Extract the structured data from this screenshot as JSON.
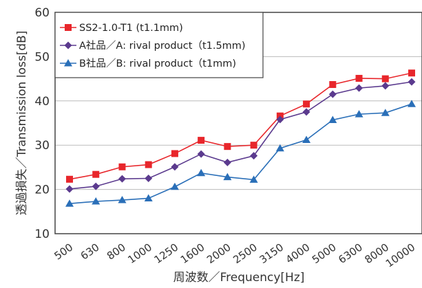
{
  "chart_data": {
    "type": "line",
    "title": "",
    "xlabel": "周波数／Frequency[Hz]",
    "ylabel": "透過損失／Transmission loss[dB]",
    "categories": [
      "500",
      "630",
      "800",
      "1000",
      "1250",
      "1600",
      "2000",
      "2500",
      "3150",
      "4000",
      "5000",
      "6300",
      "8000",
      "10000"
    ],
    "ylim": [
      10,
      60
    ],
    "yticks": [
      "10",
      "20",
      "30",
      "40",
      "50",
      "60"
    ],
    "grid": true,
    "legend_position": "top-left",
    "series": [
      {
        "name": "SS2-1.0-T1 (t1.1mm)",
        "color": "#e8262b",
        "marker": "square",
        "values": [
          22.3,
          23.4,
          25.1,
          25.6,
          28.1,
          31.1,
          29.7,
          30.0,
          36.6,
          39.3,
          43.7,
          45.1,
          45.0,
          46.3
        ]
      },
      {
        "name": "A社品／A: rival product（t1.5mm)",
        "color": "#5b3a8e",
        "marker": "diamond",
        "values": [
          20.1,
          20.7,
          22.4,
          22.5,
          25.1,
          28.0,
          26.1,
          27.6,
          35.8,
          37.5,
          41.5,
          42.9,
          43.4,
          44.3
        ]
      },
      {
        "name": "B社品／B: rival product（t1mm)",
        "color": "#2a6fb8",
        "marker": "triangle",
        "values": [
          16.8,
          17.3,
          17.6,
          18.0,
          20.6,
          23.7,
          22.8,
          22.2,
          29.3,
          31.2,
          35.7,
          37.0,
          37.3,
          39.3
        ]
      }
    ]
  }
}
